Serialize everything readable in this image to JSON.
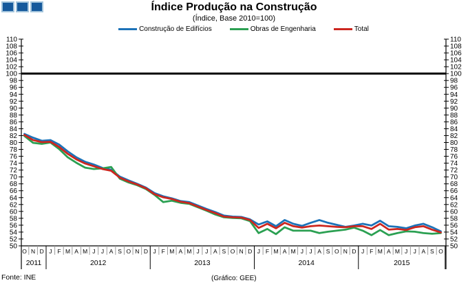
{
  "header": {
    "title": "Índice Produção na Construção",
    "subtitle": "(Índice, Base 2010=100)",
    "logo_color": "#15599c"
  },
  "legend": {
    "items": [
      {
        "label": "Construção de Edifícios",
        "color": "#1c72b8"
      },
      {
        "label": "Obras de Engenharia",
        "color": "#2ba052"
      },
      {
        "label": "Total",
        "color": "#cc261f"
      }
    ]
  },
  "chart_data": {
    "type": "line",
    "title": "Índice Produção na Construção",
    "subtitle": "(Índice, Base 2010=100)",
    "legend_position": "top",
    "grid": false,
    "ylim": [
      50,
      110
    ],
    "ytick_step": 2,
    "reference_line": {
      "value": 100,
      "color": "#000000"
    },
    "months": [
      "O",
      "N",
      "D",
      "J",
      "F",
      "M",
      "A",
      "M",
      "J",
      "J",
      "A",
      "S",
      "O",
      "N",
      "D",
      "J",
      "F",
      "M",
      "A",
      "M",
      "J",
      "J",
      "A",
      "S",
      "O",
      "N",
      "D",
      "J",
      "F",
      "M",
      "A",
      "M",
      "J",
      "J",
      "A",
      "S",
      "O",
      "N",
      "D",
      "J",
      "F",
      "M",
      "A",
      "M",
      "J",
      "J",
      "A",
      "S",
      "O"
    ],
    "years": [
      {
        "label": "2011",
        "from": 0,
        "to": 2
      },
      {
        "label": "2012",
        "from": 3,
        "to": 14
      },
      {
        "label": "2013",
        "from": 15,
        "to": 26
      },
      {
        "label": "2014",
        "from": 27,
        "to": 38
      },
      {
        "label": "2015",
        "from": 39,
        "to": 48
      }
    ],
    "series": [
      {
        "name": "Construção de Edifícios",
        "color": "#1c72b8",
        "values": [
          82.5,
          81.4,
          80.5,
          80.7,
          79.4,
          77.4,
          75.7,
          74.4,
          73.6,
          72.6,
          72.1,
          70.1,
          69.0,
          68.0,
          66.9,
          65.3,
          64.4,
          63.8,
          63.0,
          62.7,
          61.7,
          60.7,
          59.8,
          58.8,
          58.5,
          58.4,
          57.7,
          56.2,
          57.1,
          55.7,
          57.5,
          56.4,
          55.8,
          56.7,
          57.5,
          56.7,
          56.1,
          55.5,
          55.9,
          56.4,
          55.9,
          57.3,
          55.7,
          55.5,
          55.1,
          55.9,
          56.4,
          55.4,
          54.2
        ]
      },
      {
        "name": "Obras de Engenharia",
        "color": "#2ba052",
        "values": [
          81.9,
          79.9,
          79.6,
          80.0,
          78.1,
          75.7,
          74.1,
          72.7,
          72.3,
          72.5,
          72.9,
          69.5,
          68.4,
          67.6,
          66.5,
          64.8,
          62.7,
          63.1,
          62.5,
          62.2,
          61.2,
          60.2,
          59.1,
          58.3,
          58.1,
          58.0,
          57.2,
          53.7,
          54.9,
          53.4,
          55.4,
          54.4,
          54.4,
          54.4,
          53.7,
          54.1,
          54.4,
          54.7,
          55.3,
          54.4,
          53.1,
          54.6,
          53.1,
          53.7,
          54.2,
          54.1,
          53.7,
          53.5,
          53.7
        ]
      },
      {
        "name": "Total",
        "color": "#cc261f",
        "values": [
          82.2,
          80.7,
          80.1,
          80.2,
          78.7,
          76.7,
          75.1,
          73.9,
          73.1,
          72.3,
          71.8,
          69.8,
          68.7,
          67.8,
          66.7,
          65.0,
          64.1,
          63.6,
          62.8,
          62.4,
          61.4,
          60.4,
          59.5,
          58.5,
          58.3,
          58.2,
          57.5,
          55.2,
          56.4,
          55.1,
          56.7,
          55.7,
          55.3,
          55.7,
          55.9,
          55.7,
          55.5,
          55.4,
          55.7,
          55.7,
          54.9,
          56.4,
          54.7,
          54.9,
          54.6,
          55.4,
          55.7,
          54.7,
          53.9
        ]
      }
    ]
  },
  "footer": {
    "source": "Fonte: INE",
    "credit": "(Gráfico: GEE)"
  }
}
